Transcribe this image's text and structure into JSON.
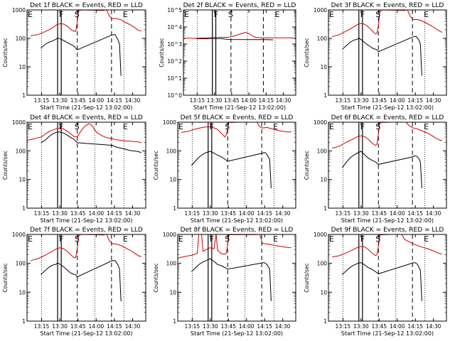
{
  "figure": {
    "xlabel": "Start Time (21-Sep-12 13:02:00)",
    "ylabel": "Counts/sec",
    "xticks": [
      {
        "t": 13.25,
        "label": "13:15"
      },
      {
        "t": 13.5,
        "label": "13:30"
      },
      {
        "t": 13.75,
        "label": "13:45"
      },
      {
        "t": 14.0,
        "label": "14:00"
      },
      {
        "t": 14.25,
        "label": "14:15"
      },
      {
        "t": 14.5,
        "label": "14:30"
      }
    ],
    "xlim": [
      13.05,
      14.68
    ],
    "yticks_standard": [
      {
        "v": 1,
        "label": "1"
      },
      {
        "v": 10,
        "label": "10"
      },
      {
        "v": 100,
        "label": "100"
      },
      {
        "v": 1000,
        "label": "1000"
      }
    ],
    "yticks_wide": [
      {
        "v": 1,
        "label": "10^0"
      },
      {
        "v": 10,
        "label": "10^1"
      },
      {
        "v": 100,
        "label": "10^2"
      },
      {
        "v": 1000,
        "label": "10^3"
      },
      {
        "v": 10000,
        "label": "10^4"
      },
      {
        "v": 100000,
        "label": "10^5"
      }
    ],
    "colors": {
      "events": "#000000",
      "lld": "#cc0000",
      "frame": "#000000"
    },
    "markers": {
      "start": "S",
      "flare": "F",
      "end": "E"
    }
  },
  "chart_data": [
    {
      "type": "line",
      "title": "Det 1f BLACK = Events, RED = LLD",
      "scale": "log",
      "ylim": [
        1,
        1000
      ],
      "attenuator": [
        13.47,
        13.52
      ],
      "s": 13.74,
      "e": 14.21,
      "series": [
        {
          "name": "Events",
          "x": [
            13.24,
            13.3,
            13.35,
            13.4,
            13.45,
            13.47,
            13.52,
            13.57,
            13.62,
            13.67,
            13.7,
            13.72,
            13.74,
            14.22,
            14.24,
            14.26,
            14.28,
            14.3,
            14.32,
            14.34
          ],
          "y": [
            45,
            60,
            70,
            80,
            95,
            100,
            90,
            80,
            70,
            60,
            50,
            45,
            40,
            130,
            140,
            130,
            110,
            90,
            60,
            5
          ]
        },
        {
          "name": "LLD",
          "x": [
            13.1,
            13.2,
            13.3,
            13.4,
            13.45,
            13.5,
            13.55,
            13.6,
            13.65,
            13.7,
            13.72,
            13.74,
            13.76,
            13.78,
            13.8,
            14.1,
            14.14,
            14.18,
            14.22,
            14.28,
            14.34,
            14.4,
            14.46,
            14.52,
            14.58,
            14.62
          ],
          "y": [
            120,
            140,
            170,
            230,
            300,
            340,
            330,
            270,
            200,
            170,
            180,
            400,
            900,
            1000,
            1000,
            1000,
            1000,
            600,
            520,
            520,
            470,
            380,
            320,
            260,
            200,
            180
          ]
        }
      ]
    },
    {
      "type": "line",
      "title": "Det 2f BLACK = Events, RED = LLD",
      "scale": "log",
      "ylim": [
        1,
        100000
      ],
      "attenuator": [
        13.47,
        13.52
      ],
      "s": 13.74,
      "e": 14.21,
      "series": [
        {
          "name": "Events",
          "x": [
            13.24,
            13.3,
            13.4,
            13.47,
            13.52,
            13.6,
            13.7,
            13.74,
            14.22,
            14.3,
            14.35
          ],
          "y": [
            2000,
            2050,
            2050,
            2100,
            2100,
            2000,
            1900,
            1900,
            1800,
            1750,
            1700
          ]
        },
        {
          "name": "LLD",
          "x": [
            13.05,
            13.2,
            13.4,
            13.6,
            13.7,
            13.8,
            13.9,
            13.95,
            14.0,
            14.05,
            14.1,
            14.2,
            14.4,
            14.6,
            14.68
          ],
          "y": [
            2200,
            2250,
            2300,
            2400,
            2600,
            3000,
            4200,
            5000,
            4300,
            3000,
            2400,
            2300,
            2250,
            2250,
            2250
          ]
        }
      ]
    },
    {
      "type": "line",
      "title": "Det 3f BLACK = Events, RED = LLD",
      "scale": "log",
      "ylim": [
        1,
        1000
      ],
      "attenuator": [
        13.47,
        13.52
      ],
      "s": 13.74,
      "e": 14.21,
      "series": [
        {
          "name": "Events",
          "x": [
            13.24,
            13.3,
            13.35,
            13.4,
            13.45,
            13.47,
            13.52,
            13.57,
            13.62,
            13.67,
            13.72,
            13.74,
            14.22,
            14.24,
            14.26,
            14.28,
            14.3,
            14.32,
            14.34
          ],
          "y": [
            40,
            55,
            70,
            85,
            95,
            100,
            80,
            65,
            55,
            45,
            40,
            35,
            110,
            120,
            115,
            100,
            90,
            60,
            5
          ]
        },
        {
          "name": "LLD",
          "x": [
            13.1,
            13.2,
            13.3,
            13.4,
            13.45,
            13.5,
            13.55,
            13.6,
            13.65,
            13.7,
            13.72,
            13.74,
            13.76,
            13.78,
            13.8,
            14.1,
            14.14,
            14.18,
            14.22,
            14.28,
            14.34,
            14.4,
            14.46,
            14.52,
            14.58,
            14.62
          ],
          "y": [
            110,
            140,
            180,
            250,
            310,
            350,
            320,
            250,
            180,
            140,
            150,
            300,
            800,
            1000,
            1000,
            1000,
            1000,
            580,
            480,
            480,
            430,
            360,
            300,
            240,
            190,
            160
          ]
        }
      ]
    },
    {
      "type": "line",
      "title": "Det 4f BLACK = Events, RED = LLD",
      "scale": "log",
      "ylim": [
        1,
        1000
      ],
      "attenuator": [
        13.47,
        13.52
      ],
      "s": 13.74,
      "e": 14.21,
      "series": [
        {
          "name": "Events",
          "x": [
            13.24,
            13.3,
            13.35,
            13.4,
            13.45,
            13.5,
            13.55,
            13.6,
            13.65,
            13.7,
            13.74,
            14.22,
            14.28,
            14.34,
            14.4,
            14.46,
            14.52,
            14.58,
            14.62
          ],
          "y": [
            190,
            230,
            300,
            380,
            450,
            480,
            430,
            350,
            280,
            240,
            200,
            150,
            130,
            120,
            110,
            100,
            95,
            90,
            88
          ]
        },
        {
          "name": "LLD",
          "x": [
            13.05,
            13.15,
            13.25,
            13.35,
            13.45,
            13.5,
            13.55,
            13.6,
            13.65,
            13.7,
            13.74,
            13.78,
            13.82,
            13.86,
            13.9,
            13.94,
            13.98,
            14.02,
            14.06,
            14.1,
            14.14,
            14.18,
            14.22,
            14.28,
            14.34,
            14.4,
            14.46,
            14.52,
            14.58,
            14.62
          ],
          "y": [
            230,
            260,
            320,
            450,
            600,
            650,
            600,
            480,
            380,
            300,
            320,
            450,
            600,
            800,
            900,
            750,
            550,
            420,
            350,
            320,
            300,
            270,
            260,
            240,
            230,
            220,
            215,
            210,
            205,
            200
          ]
        }
      ]
    },
    {
      "type": "line",
      "title": "Det 5f BLACK = Events, RED = LLD",
      "scale": "log",
      "ylim": [
        1,
        1000
      ],
      "attenuator": [
        13.47,
        13.52
      ],
      "s": 13.74,
      "e": 14.21,
      "series": [
        {
          "name": "Events",
          "x": [
            13.24,
            13.3,
            13.35,
            13.4,
            13.45,
            13.5,
            13.55,
            13.6,
            13.65,
            13.7,
            13.74,
            14.22,
            14.24,
            14.26,
            14.28,
            14.3,
            14.32,
            14.34
          ],
          "y": [
            30,
            45,
            60,
            75,
            90,
            100,
            85,
            70,
            60,
            50,
            45,
            80,
            90,
            85,
            75,
            65,
            50,
            5
          ]
        },
        {
          "name": "LLD",
          "x": [
            13.1,
            13.2,
            13.3,
            13.4,
            13.45,
            13.5,
            13.55,
            13.6,
            13.65,
            13.7,
            13.72,
            13.74,
            13.76,
            13.78,
            14.0,
            14.14,
            14.18,
            14.22,
            14.28,
            14.34,
            14.4,
            14.46,
            14.52,
            14.58,
            14.62
          ],
          "y": [
            420,
            500,
            580,
            650,
            700,
            720,
            650,
            550,
            400,
            300,
            350,
            700,
            1000,
            1000,
            1000,
            1000,
            700,
            650,
            680,
            620,
            560,
            520,
            490,
            470,
            450
          ]
        }
      ]
    },
    {
      "type": "line",
      "title": "Det 6f BLACK = Events, RED = LLD",
      "scale": "log",
      "ylim": [
        1,
        1000
      ],
      "attenuator": [
        13.47,
        13.52
      ],
      "s": 13.74,
      "e": 14.21,
      "series": [
        {
          "name": "Events",
          "x": [
            13.24,
            13.3,
            13.35,
            13.4,
            13.45,
            13.5,
            13.55,
            13.6,
            13.65,
            13.7,
            13.74,
            14.22,
            14.24,
            14.26,
            14.28,
            14.3,
            14.32,
            14.34
          ],
          "y": [
            25,
            40,
            55,
            70,
            85,
            100,
            75,
            55,
            45,
            40,
            35,
            60,
            70,
            65,
            60,
            55,
            40,
            5
          ]
        },
        {
          "name": "LLD",
          "x": [
            13.1,
            13.2,
            13.3,
            13.4,
            13.45,
            13.5,
            13.55,
            13.6,
            13.65,
            13.7,
            13.72,
            13.74,
            13.76,
            13.78,
            14.08,
            14.12,
            14.16,
            14.22,
            14.28,
            14.34,
            14.4,
            14.46,
            14.52,
            14.58,
            14.62
          ],
          "y": [
            120,
            150,
            200,
            260,
            320,
            350,
            320,
            250,
            180,
            150,
            170,
            400,
            900,
            1000,
            1000,
            1000,
            800,
            650,
            600,
            520,
            450,
            380,
            300,
            250,
            220
          ]
        }
      ]
    },
    {
      "type": "line",
      "title": "Det 7f BLACK = Events, RED = LLD",
      "scale": "log",
      "ylim": [
        1,
        1000
      ],
      "attenuator": [
        13.47,
        13.52
      ],
      "s": 13.74,
      "e": 14.21,
      "series": [
        {
          "name": "Events",
          "x": [
            13.24,
            13.3,
            13.35,
            13.4,
            13.45,
            13.47,
            13.52,
            13.57,
            13.62,
            13.67,
            13.72,
            13.74,
            14.22,
            14.24,
            14.26,
            14.28,
            14.3,
            14.32,
            14.34
          ],
          "y": [
            40,
            55,
            70,
            85,
            95,
            100,
            85,
            70,
            55,
            45,
            40,
            35,
            120,
            130,
            120,
            105,
            90,
            60,
            5
          ]
        },
        {
          "name": "LLD",
          "x": [
            13.1,
            13.2,
            13.3,
            13.4,
            13.45,
            13.5,
            13.55,
            13.6,
            13.65,
            13.7,
            13.72,
            13.74,
            13.76,
            13.78,
            13.8,
            14.1,
            14.14,
            14.18,
            14.22,
            14.28,
            14.34,
            14.4,
            14.46,
            14.52,
            14.58,
            14.62
          ],
          "y": [
            120,
            150,
            190,
            260,
            320,
            360,
            330,
            260,
            190,
            150,
            160,
            350,
            850,
            1000,
            1000,
            1000,
            1000,
            600,
            500,
            480,
            430,
            360,
            300,
            240,
            190,
            170
          ]
        }
      ]
    },
    {
      "type": "line",
      "title": "Det 8f BLACK = Events, RED = LLD",
      "scale": "log",
      "ylim": [
        1,
        1000
      ],
      "attenuator": [
        13.47,
        13.52
      ],
      "s": 13.74,
      "e": 14.21,
      "series": [
        {
          "name": "Events",
          "x": [
            13.24,
            13.3,
            13.35,
            13.4,
            13.45,
            13.5,
            13.55,
            13.6,
            13.65,
            13.7,
            13.74,
            14.22,
            14.24,
            14.26,
            14.28,
            14.3,
            14.32,
            14.34
          ],
          "y": [
            50,
            70,
            90,
            110,
            130,
            150,
            120,
            90,
            80,
            70,
            65,
            100,
            110,
            100,
            90,
            80,
            60,
            5
          ]
        },
        {
          "name": "LLD",
          "x": [
            13.05,
            13.15,
            13.25,
            13.32,
            13.34,
            13.38,
            13.4,
            13.45,
            13.5,
            13.55,
            13.58,
            13.6,
            13.65,
            13.7,
            13.72,
            13.74,
            13.76,
            13.78,
            14.14,
            14.18,
            14.22,
            14.28,
            14.34,
            14.4,
            14.46,
            14.52,
            14.58,
            14.62
          ],
          "y": [
            150,
            170,
            200,
            230,
            1000,
            1000,
            250,
            300,
            350,
            330,
            1000,
            300,
            220,
            200,
            230,
            450,
            1000,
            1000,
            1000,
            1000,
            500,
            480,
            450,
            420,
            400,
            380,
            360,
            350
          ]
        }
      ]
    },
    {
      "type": "line",
      "title": "Det 9f BLACK = Events, RED = LLD",
      "scale": "log",
      "ylim": [
        1,
        1000
      ],
      "attenuator": [
        13.47,
        13.52
      ],
      "s": 13.74,
      "e": 14.21,
      "series": [
        {
          "name": "Events",
          "x": [
            13.24,
            13.3,
            13.35,
            13.4,
            13.45,
            13.5,
            13.55,
            13.6,
            13.65,
            13.7,
            13.74,
            14.22,
            14.24,
            14.26,
            14.28,
            14.3,
            14.32,
            14.34
          ],
          "y": [
            40,
            55,
            70,
            85,
            100,
            110,
            90,
            70,
            60,
            50,
            45,
            100,
            110,
            100,
            90,
            75,
            55,
            5
          ]
        },
        {
          "name": "LLD",
          "x": [
            13.1,
            13.2,
            13.3,
            13.4,
            13.45,
            13.5,
            13.55,
            13.6,
            13.65,
            13.7,
            13.72,
            13.74,
            13.76,
            13.78,
            14.0,
            14.06,
            14.1,
            14.18,
            14.26,
            14.34,
            14.42,
            14.5,
            14.56,
            14.62
          ],
          "y": [
            160,
            190,
            230,
            300,
            360,
            400,
            380,
            300,
            220,
            180,
            200,
            400,
            900,
            1000,
            1000,
            1000,
            700,
            520,
            420,
            380,
            320,
            260,
            220,
            200
          ]
        }
      ]
    }
  ]
}
